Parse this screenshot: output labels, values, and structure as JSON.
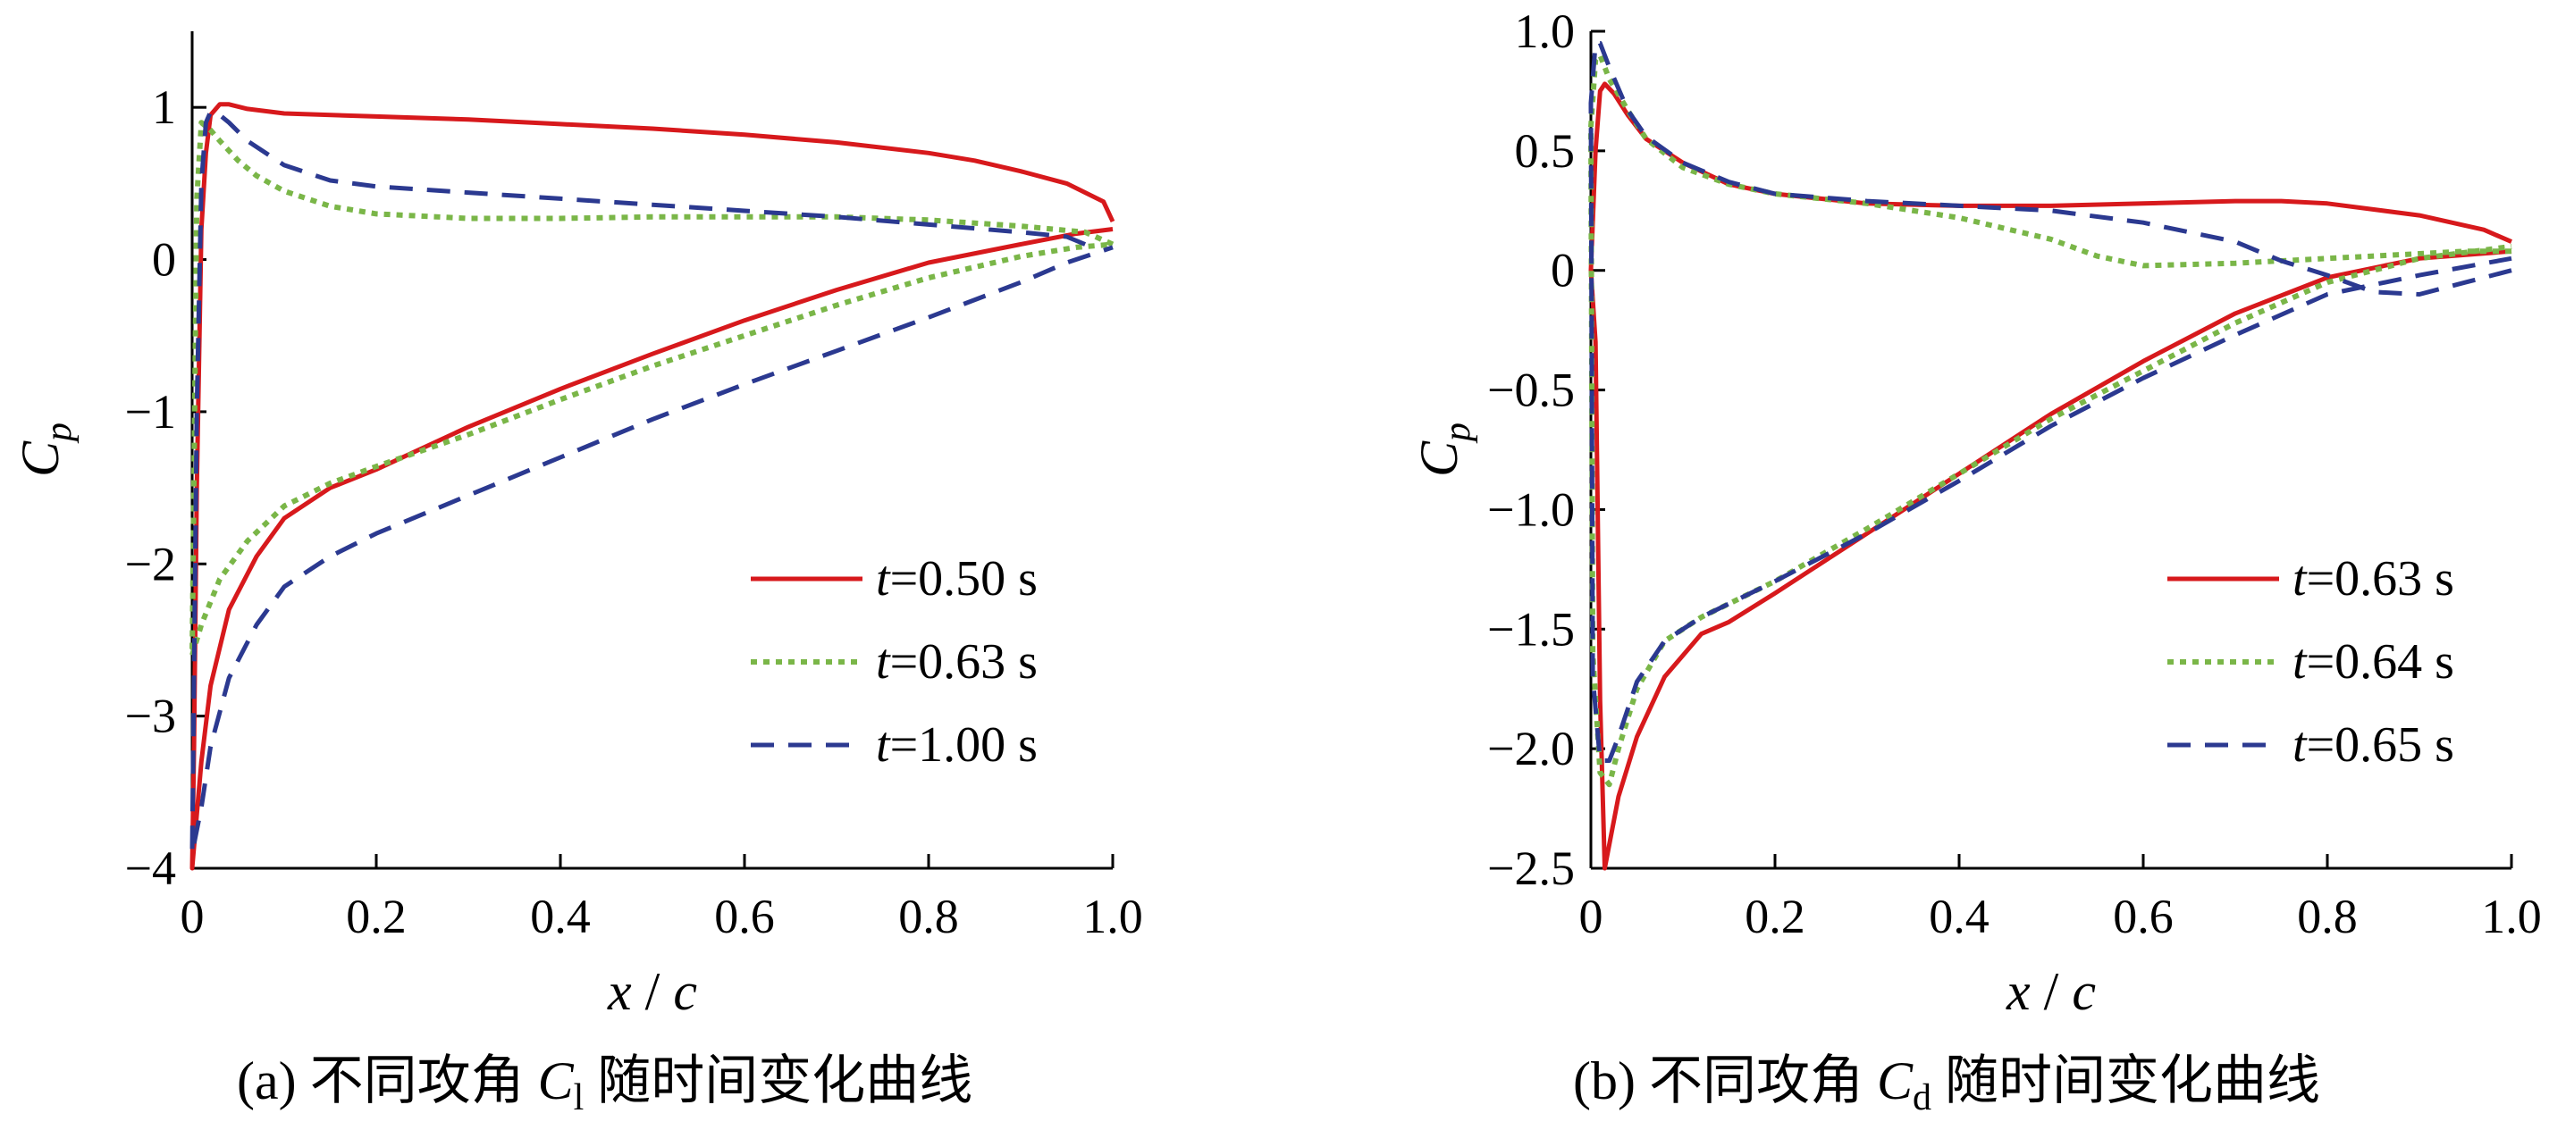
{
  "chart_data": [
    {
      "type": "line",
      "caption_prefix": "(a)",
      "caption_text": "不同攻角",
      "caption_symbol": "C",
      "caption_subscript": "l",
      "caption_suffix": "随时间变化曲线",
      "xlabel": "x/c",
      "ylabel": "Cp",
      "xlim": [
        0,
        1
      ],
      "ylim": [
        -4,
        1.5
      ],
      "xticks": [
        0,
        0.2,
        0.4,
        0.6,
        0.8,
        1.0
      ],
      "xtick_labels": [
        "0",
        "0.2",
        "0.4",
        "0.6",
        "0.8",
        "1.0"
      ],
      "yticks": [
        1,
        0,
        -1,
        -2,
        -3,
        -4
      ],
      "ytick_labels": [
        "1",
        "0",
        "−1",
        "−2",
        "−3",
        "−4"
      ],
      "legend_position": "lower-right",
      "series": [
        {
          "name": "t = 0.50 s",
          "legend_var": "t",
          "legend_value": "=0.50 s",
          "color": "#d7191c",
          "style": "solid",
          "points": [
            [
              1.0,
              0.25
            ],
            [
              0.99,
              0.38
            ],
            [
              0.95,
              0.5
            ],
            [
              0.9,
              0.58
            ],
            [
              0.85,
              0.65
            ],
            [
              0.8,
              0.7
            ],
            [
              0.7,
              0.77
            ],
            [
              0.6,
              0.82
            ],
            [
              0.5,
              0.86
            ],
            [
              0.4,
              0.89
            ],
            [
              0.3,
              0.92
            ],
            [
              0.2,
              0.94
            ],
            [
              0.1,
              0.96
            ],
            [
              0.06,
              0.99
            ],
            [
              0.04,
              1.02
            ],
            [
              0.03,
              1.02
            ],
            [
              0.02,
              0.95
            ],
            [
              0.015,
              0.7
            ],
            [
              0.01,
              0.2
            ],
            [
              0.005,
              -1.5
            ],
            [
              0.002,
              -3.2
            ],
            [
              0.0,
              -4.0
            ],
            [
              0.01,
              -3.3
            ],
            [
              0.02,
              -2.8
            ],
            [
              0.04,
              -2.3
            ],
            [
              0.07,
              -1.95
            ],
            [
              0.1,
              -1.7
            ],
            [
              0.15,
              -1.5
            ],
            [
              0.2,
              -1.38
            ],
            [
              0.3,
              -1.1
            ],
            [
              0.4,
              -0.85
            ],
            [
              0.5,
              -0.62
            ],
            [
              0.6,
              -0.4
            ],
            [
              0.7,
              -0.2
            ],
            [
              0.8,
              -0.02
            ],
            [
              0.9,
              0.1
            ],
            [
              0.96,
              0.17
            ],
            [
              1.0,
              0.2
            ]
          ]
        },
        {
          "name": "t = 0.63 s",
          "legend_var": "t",
          "legend_value": "=0.63 s",
          "color": "#7ab648",
          "style": "dotted",
          "points": [
            [
              1.0,
              0.1
            ],
            [
              0.97,
              0.18
            ],
            [
              0.9,
              0.22
            ],
            [
              0.8,
              0.26
            ],
            [
              0.7,
              0.28
            ],
            [
              0.6,
              0.28
            ],
            [
              0.5,
              0.28
            ],
            [
              0.4,
              0.27
            ],
            [
              0.3,
              0.27
            ],
            [
              0.2,
              0.3
            ],
            [
              0.15,
              0.35
            ],
            [
              0.1,
              0.45
            ],
            [
              0.07,
              0.55
            ],
            [
              0.05,
              0.65
            ],
            [
              0.03,
              0.78
            ],
            [
              0.02,
              0.85
            ],
            [
              0.01,
              0.9
            ],
            [
              0.005,
              0.4
            ],
            [
              0.0,
              -2.6
            ],
            [
              0.01,
              -2.4
            ],
            [
              0.03,
              -2.1
            ],
            [
              0.06,
              -1.85
            ],
            [
              0.1,
              -1.62
            ],
            [
              0.15,
              -1.47
            ],
            [
              0.2,
              -1.36
            ],
            [
              0.3,
              -1.15
            ],
            [
              0.4,
              -0.92
            ],
            [
              0.5,
              -0.7
            ],
            [
              0.6,
              -0.5
            ],
            [
              0.7,
              -0.3
            ],
            [
              0.8,
              -0.12
            ],
            [
              0.9,
              0.02
            ],
            [
              0.96,
              0.08
            ],
            [
              1.0,
              0.1
            ]
          ]
        },
        {
          "name": "t = 1.00 s",
          "legend_var": "t",
          "legend_value": "=1.00 s",
          "color": "#2b3990",
          "style": "dashed",
          "points": [
            [
              0.97,
              0.1
            ],
            [
              0.95,
              0.15
            ],
            [
              0.9,
              0.18
            ],
            [
              0.8,
              0.23
            ],
            [
              0.7,
              0.28
            ],
            [
              0.6,
              0.32
            ],
            [
              0.5,
              0.36
            ],
            [
              0.4,
              0.4
            ],
            [
              0.3,
              0.44
            ],
            [
              0.2,
              0.48
            ],
            [
              0.15,
              0.52
            ],
            [
              0.1,
              0.62
            ],
            [
              0.06,
              0.78
            ],
            [
              0.04,
              0.9
            ],
            [
              0.03,
              0.95
            ],
            [
              0.02,
              0.97
            ],
            [
              0.015,
              0.9
            ],
            [
              0.01,
              0.5
            ],
            [
              0.005,
              -1.0
            ],
            [
              0.0,
              -3.9
            ],
            [
              0.01,
              -3.6
            ],
            [
              0.02,
              -3.2
            ],
            [
              0.04,
              -2.75
            ],
            [
              0.07,
              -2.4
            ],
            [
              0.1,
              -2.15
            ],
            [
              0.15,
              -1.95
            ],
            [
              0.2,
              -1.8
            ],
            [
              0.3,
              -1.55
            ],
            [
              0.4,
              -1.3
            ],
            [
              0.5,
              -1.05
            ],
            [
              0.6,
              -0.82
            ],
            [
              0.7,
              -0.6
            ],
            [
              0.8,
              -0.38
            ],
            [
              0.9,
              -0.15
            ],
            [
              0.95,
              -0.02
            ],
            [
              1.0,
              0.08
            ]
          ]
        }
      ]
    },
    {
      "type": "line",
      "caption_prefix": "(b)",
      "caption_text": "不同攻角",
      "caption_symbol": "C",
      "caption_subscript": "d",
      "caption_suffix": "随时间变化曲线",
      "xlabel": "x/c",
      "ylabel": "Cp",
      "xlim": [
        0,
        1
      ],
      "ylim": [
        -2.5,
        1.0
      ],
      "xticks": [
        0,
        0.2,
        0.4,
        0.6,
        0.8,
        1.0
      ],
      "xtick_labels": [
        "0",
        "0.2",
        "0.4",
        "0.6",
        "0.8",
        "1.0"
      ],
      "yticks": [
        1.0,
        0.5,
        0,
        -0.5,
        -1.0,
        -1.5,
        -2.0,
        -2.5
      ],
      "ytick_labels": [
        "1.0",
        "0.5",
        "0",
        "−0.5",
        "−1.0",
        "−1.5",
        "−2.0",
        "−2.5"
      ],
      "legend_position": "lower-right",
      "series": [
        {
          "name": "t = 0.63 s",
          "legend_var": "t",
          "legend_value": "=0.63 s",
          "color": "#d7191c",
          "style": "solid",
          "points": [
            [
              1.0,
              0.12
            ],
            [
              0.97,
              0.17
            ],
            [
              0.9,
              0.23
            ],
            [
              0.8,
              0.28
            ],
            [
              0.75,
              0.29
            ],
            [
              0.7,
              0.29
            ],
            [
              0.6,
              0.28
            ],
            [
              0.5,
              0.27
            ],
            [
              0.4,
              0.27
            ],
            [
              0.3,
              0.28
            ],
            [
              0.2,
              0.32
            ],
            [
              0.15,
              0.36
            ],
            [
              0.1,
              0.45
            ],
            [
              0.06,
              0.55
            ],
            [
              0.04,
              0.65
            ],
            [
              0.025,
              0.74
            ],
            [
              0.015,
              0.78
            ],
            [
              0.01,
              0.75
            ],
            [
              0.005,
              0.5
            ],
            [
              0.0,
              0.0
            ],
            [
              0.005,
              -0.3
            ],
            [
              0.01,
              -1.8
            ],
            [
              0.015,
              -2.5
            ],
            [
              0.03,
              -2.2
            ],
            [
              0.05,
              -1.95
            ],
            [
              0.08,
              -1.7
            ],
            [
              0.12,
              -1.52
            ],
            [
              0.15,
              -1.47
            ],
            [
              0.2,
              -1.35
            ],
            [
              0.3,
              -1.1
            ],
            [
              0.4,
              -0.85
            ],
            [
              0.5,
              -0.6
            ],
            [
              0.6,
              -0.38
            ],
            [
              0.7,
              -0.18
            ],
            [
              0.8,
              -0.03
            ],
            [
              0.9,
              0.05
            ],
            [
              1.0,
              0.08
            ]
          ]
        },
        {
          "name": "t = 0.64 s",
          "legend_var": "t",
          "legend_value": "=0.64 s",
          "color": "#7ab648",
          "style": "dotted",
          "points": [
            [
              1.0,
              0.08
            ],
            [
              0.95,
              0.08
            ],
            [
              0.9,
              0.07
            ],
            [
              0.8,
              0.05
            ],
            [
              0.75,
              0.04
            ],
            [
              0.7,
              0.03
            ],
            [
              0.6,
              0.02
            ],
            [
              0.55,
              0.06
            ],
            [
              0.5,
              0.13
            ],
            [
              0.4,
              0.22
            ],
            [
              0.3,
              0.28
            ],
            [
              0.2,
              0.32
            ],
            [
              0.15,
              0.36
            ],
            [
              0.1,
              0.43
            ],
            [
              0.06,
              0.55
            ],
            [
              0.04,
              0.67
            ],
            [
              0.02,
              0.8
            ],
            [
              0.01,
              0.9
            ],
            [
              0.005,
              0.88
            ],
            [
              0.0,
              0.6
            ],
            [
              0.002,
              -1.6
            ],
            [
              0.01,
              -2.1
            ],
            [
              0.02,
              -2.15
            ],
            [
              0.03,
              -2.0
            ],
            [
              0.05,
              -1.75
            ],
            [
              0.08,
              -1.55
            ],
            [
              0.12,
              -1.45
            ],
            [
              0.2,
              -1.3
            ],
            [
              0.3,
              -1.08
            ],
            [
              0.4,
              -0.85
            ],
            [
              0.5,
              -0.62
            ],
            [
              0.6,
              -0.42
            ],
            [
              0.7,
              -0.22
            ],
            [
              0.8,
              -0.05
            ],
            [
              0.9,
              0.05
            ],
            [
              1.0,
              0.1
            ]
          ]
        },
        {
          "name": "t = 0.65 s",
          "legend_var": "t",
          "legend_value": "=0.65 s",
          "color": "#2b3990",
          "style": "dashed",
          "points": [
            [
              1.0,
              0.0
            ],
            [
              0.95,
              -0.05
            ],
            [
              0.9,
              -0.1
            ],
            [
              0.85,
              -0.09
            ],
            [
              0.8,
              -0.02
            ],
            [
              0.75,
              0.04
            ],
            [
              0.7,
              0.12
            ],
            [
              0.6,
              0.2
            ],
            [
              0.5,
              0.25
            ],
            [
              0.4,
              0.27
            ],
            [
              0.3,
              0.29
            ],
            [
              0.2,
              0.32
            ],
            [
              0.15,
              0.37
            ],
            [
              0.1,
              0.45
            ],
            [
              0.06,
              0.56
            ],
            [
              0.04,
              0.67
            ],
            [
              0.02,
              0.85
            ],
            [
              0.01,
              0.95
            ],
            [
              0.005,
              0.95
            ],
            [
              0.0,
              0.7
            ],
            [
              0.002,
              -1.7
            ],
            [
              0.01,
              -2.05
            ],
            [
              0.02,
              -2.05
            ],
            [
              0.03,
              -1.95
            ],
            [
              0.05,
              -1.72
            ],
            [
              0.08,
              -1.55
            ],
            [
              0.12,
              -1.45
            ],
            [
              0.2,
              -1.3
            ],
            [
              0.3,
              -1.1
            ],
            [
              0.4,
              -0.88
            ],
            [
              0.5,
              -0.65
            ],
            [
              0.6,
              -0.45
            ],
            [
              0.7,
              -0.27
            ],
            [
              0.8,
              -0.1
            ],
            [
              0.9,
              -0.02
            ],
            [
              1.0,
              0.05
            ]
          ]
        }
      ]
    }
  ]
}
